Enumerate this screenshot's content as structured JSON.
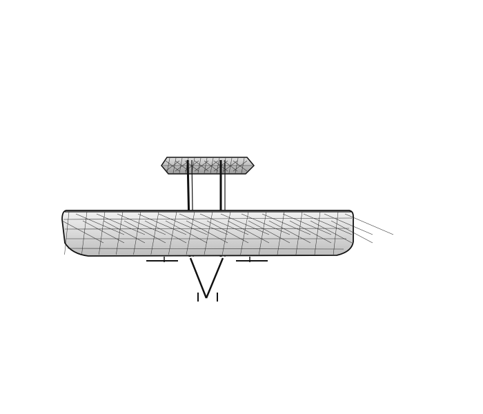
{
  "viewer": {
    "background": "#ffffff",
    "line_color": "#111111",
    "surface_fill": "#d6d6d6",
    "surface_fill_light": "#eeeeee",
    "object_icon": "wireframe-biplane-icon"
  }
}
